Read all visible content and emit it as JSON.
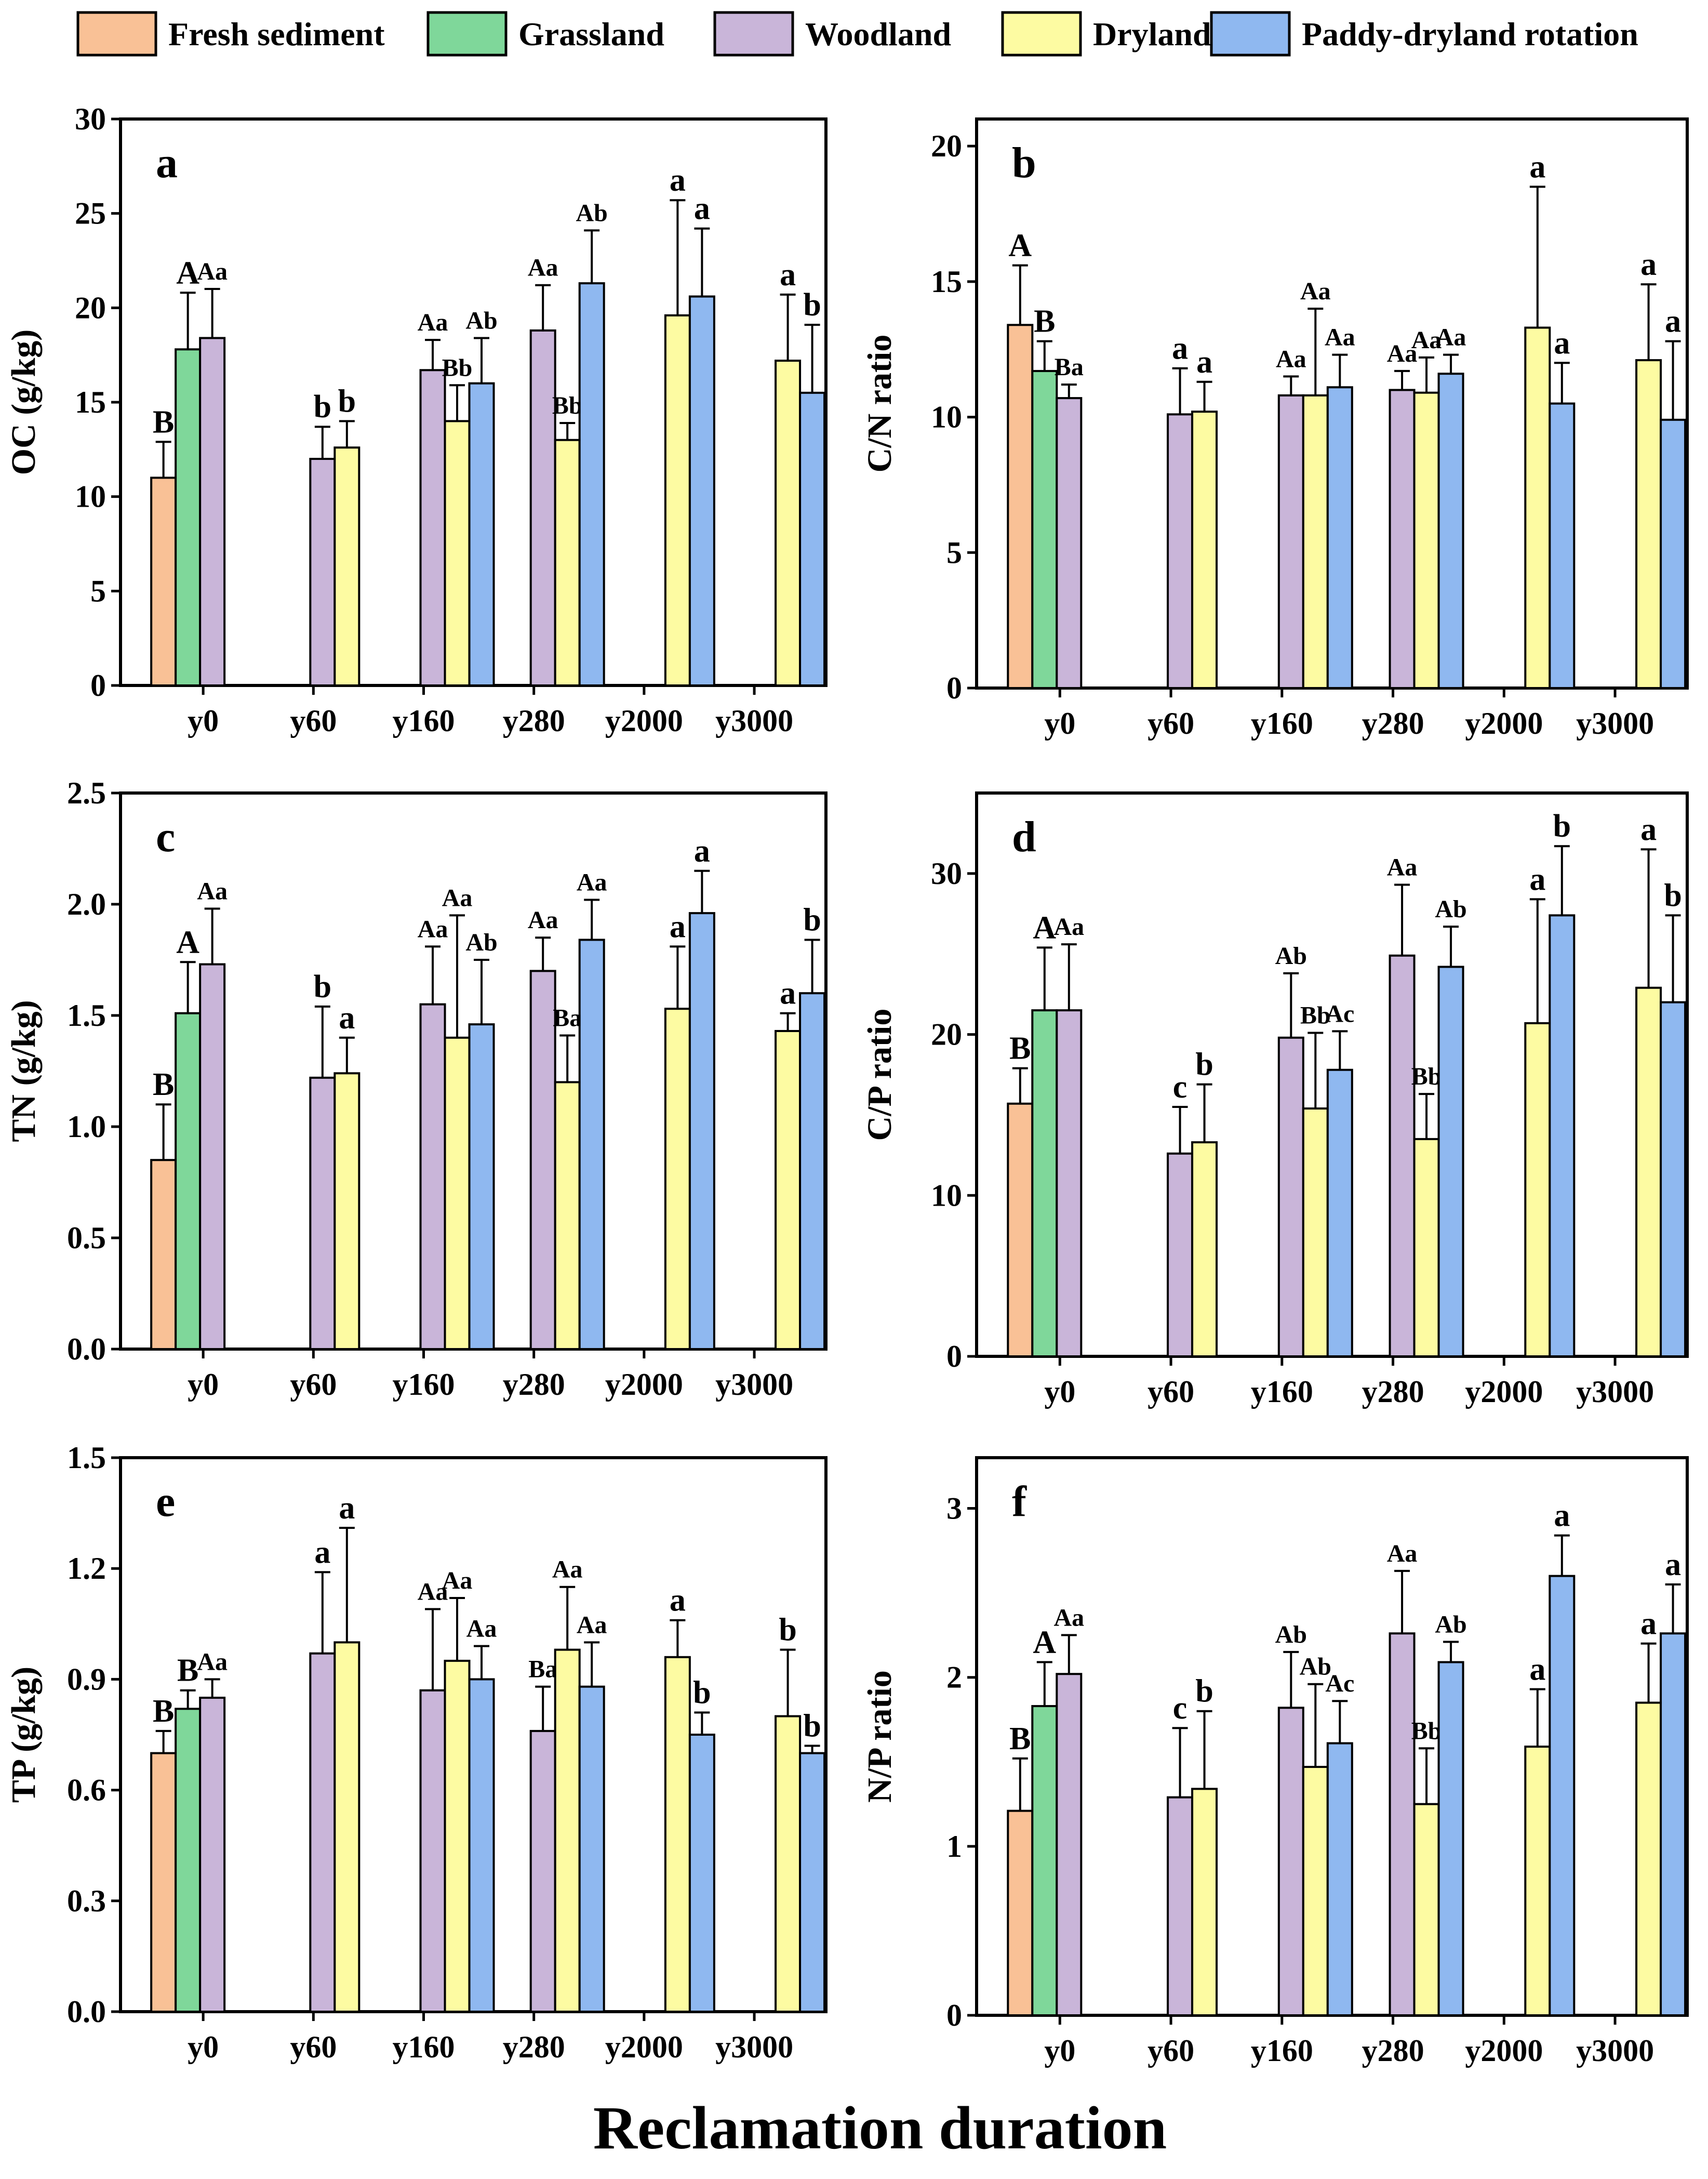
{
  "legend": [
    {
      "name": "Fresh sediment",
      "color": "#F9C196"
    },
    {
      "name": "Grassland",
      "color": "#7FD79A"
    },
    {
      "name": "Woodland",
      "color": "#C9B5D9"
    },
    {
      "name": "Dryland",
      "color": "#FDFBA2"
    },
    {
      "name": "Paddy-dryland rotation",
      "color": "#8FB8F0"
    }
  ],
  "xlabel": "Reclamation duration",
  "chart_data": [
    {
      "id": "a",
      "type": "bar",
      "panel_label": "a",
      "ylabel": "OC (g/kg)",
      "ylim": [
        0,
        30
      ],
      "yticks": [
        "0",
        "5",
        "10",
        "15",
        "20",
        "25",
        "30"
      ],
      "ytick_values": [
        0,
        5,
        10,
        15,
        20,
        25,
        30
      ],
      "categories": [
        "y0",
        "y60",
        "y160",
        "y280",
        "y2000",
        "y3000"
      ],
      "series": [
        {
          "name": "Fresh sediment",
          "values": [
            11.0,
            null,
            null,
            null,
            null,
            null
          ],
          "errors": [
            1.9,
            null,
            null,
            null,
            null,
            null
          ],
          "labels": [
            "B",
            "",
            "",
            "",
            "",
            ""
          ]
        },
        {
          "name": "Grassland",
          "values": [
            17.8,
            null,
            null,
            null,
            null,
            null
          ],
          "errors": [
            3.0,
            null,
            null,
            null,
            null,
            null
          ],
          "labels": [
            "A",
            "",
            "",
            "",
            "",
            ""
          ]
        },
        {
          "name": "Woodland",
          "values": [
            18.4,
            12.0,
            16.7,
            18.8,
            null,
            null
          ],
          "errors": [
            2.6,
            1.7,
            1.6,
            2.4,
            null,
            null
          ],
          "labels": [
            "Aa",
            "b",
            "Aa",
            "Aa",
            "",
            ""
          ]
        },
        {
          "name": "Dryland",
          "values": [
            null,
            12.6,
            14.0,
            13.0,
            19.6,
            17.2
          ],
          "errors": [
            null,
            1.4,
            1.9,
            0.9,
            6.1,
            3.5
          ],
          "labels": [
            "",
            "b",
            "Bb",
            "Bb",
            "a",
            "a"
          ]
        },
        {
          "name": "Paddy-dryland rotation",
          "values": [
            null,
            null,
            16.0,
            21.3,
            20.6,
            15.5
          ],
          "errors": [
            null,
            null,
            2.4,
            2.8,
            3.6,
            3.6
          ],
          "labels": [
            "",
            "",
            "Ab",
            "Ab",
            "a",
            "b"
          ]
        }
      ]
    },
    {
      "id": "b",
      "type": "bar",
      "panel_label": "b",
      "ylabel": "C/N ratio",
      "ylim": [
        0,
        21
      ],
      "yticks": [
        "0",
        "5",
        "10",
        "15",
        "20"
      ],
      "ytick_values": [
        0,
        5,
        10,
        15,
        20
      ],
      "categories": [
        "y0",
        "y60",
        "y160",
        "y280",
        "y2000",
        "y3000"
      ],
      "series": [
        {
          "name": "Fresh sediment",
          "values": [
            13.4,
            null,
            null,
            null,
            null,
            null
          ],
          "errors": [
            2.2,
            null,
            null,
            null,
            null,
            null
          ],
          "labels": [
            "A",
            "",
            "",
            "",
            "",
            ""
          ]
        },
        {
          "name": "Grassland",
          "values": [
            11.7,
            null,
            null,
            null,
            null,
            null
          ],
          "errors": [
            1.1,
            null,
            null,
            null,
            null,
            null
          ],
          "labels": [
            "B",
            "",
            "",
            "",
            "",
            ""
          ]
        },
        {
          "name": "Woodland",
          "values": [
            10.7,
            10.1,
            10.8,
            11.0,
            null,
            null
          ],
          "errors": [
            0.5,
            1.7,
            0.7,
            0.7,
            null,
            null
          ],
          "labels": [
            "Ba",
            "a",
            "Aa",
            "Aa",
            "",
            ""
          ]
        },
        {
          "name": "Dryland",
          "values": [
            null,
            10.2,
            10.8,
            10.9,
            13.3,
            12.1
          ],
          "errors": [
            null,
            1.1,
            3.2,
            1.3,
            5.2,
            2.8
          ],
          "labels": [
            "",
            "a",
            "Aa",
            "Aa",
            "a",
            "a"
          ]
        },
        {
          "name": "Paddy-dryland rotation",
          "values": [
            null,
            null,
            11.1,
            11.6,
            10.5,
            9.9
          ],
          "errors": [
            null,
            null,
            1.2,
            0.7,
            1.5,
            2.9
          ],
          "labels": [
            "",
            "",
            "Aa",
            "Aa",
            "a",
            "a"
          ]
        }
      ]
    },
    {
      "id": "c",
      "type": "bar",
      "panel_label": "c",
      "ylabel": "TN (g/kg)",
      "ylim": [
        0,
        2.5
      ],
      "yticks": [
        "0.0",
        "0.5",
        "1.0",
        "1.5",
        "2.0",
        "2.5"
      ],
      "ytick_values": [
        0,
        0.5,
        1.0,
        1.5,
        2.0,
        2.5
      ],
      "categories": [
        "y0",
        "y60",
        "y160",
        "y280",
        "y2000",
        "y3000"
      ],
      "series": [
        {
          "name": "Fresh sediment",
          "values": [
            0.85,
            null,
            null,
            null,
            null,
            null
          ],
          "errors": [
            0.25,
            null,
            null,
            null,
            null,
            null
          ],
          "labels": [
            "B",
            "",
            "",
            "",
            "",
            ""
          ]
        },
        {
          "name": "Grassland",
          "values": [
            1.51,
            null,
            null,
            null,
            null,
            null
          ],
          "errors": [
            0.23,
            null,
            null,
            null,
            null,
            null
          ],
          "labels": [
            "A",
            "",
            "",
            "",
            "",
            ""
          ]
        },
        {
          "name": "Woodland",
          "values": [
            1.73,
            1.22,
            1.55,
            1.7,
            null,
            null
          ],
          "errors": [
            0.25,
            0.32,
            0.26,
            0.15,
            null,
            null
          ],
          "labels": [
            "Aa",
            "b",
            "Aa",
            "Aa",
            "",
            ""
          ]
        },
        {
          "name": "Dryland",
          "values": [
            null,
            1.24,
            1.4,
            1.2,
            1.53,
            1.43
          ],
          "errors": [
            null,
            0.16,
            0.55,
            0.21,
            0.28,
            0.08
          ],
          "labels": [
            "",
            "a",
            "Aa",
            "Ba",
            "a",
            "a"
          ]
        },
        {
          "name": "Paddy-dryland rotation",
          "values": [
            null,
            null,
            1.46,
            1.84,
            1.96,
            1.6
          ],
          "errors": [
            null,
            null,
            0.29,
            0.18,
            0.19,
            0.24
          ],
          "labels": [
            "",
            "",
            "Ab",
            "Aa",
            "a",
            "b"
          ]
        }
      ]
    },
    {
      "id": "d",
      "type": "bar",
      "panel_label": "d",
      "ylabel": "C/P ratio",
      "ylim": [
        0,
        35
      ],
      "yticks": [
        "0",
        "10",
        "20",
        "30"
      ],
      "ytick_values": [
        0,
        10,
        20,
        30
      ],
      "categories": [
        "y0",
        "y60",
        "y160",
        "y280",
        "y2000",
        "y3000"
      ],
      "series": [
        {
          "name": "Fresh sediment",
          "values": [
            15.7,
            null,
            null,
            null,
            null,
            null
          ],
          "errors": [
            2.2,
            null,
            null,
            null,
            null,
            null
          ],
          "labels": [
            "B",
            "",
            "",
            "",
            "",
            ""
          ]
        },
        {
          "name": "Grassland",
          "values": [
            21.5,
            null,
            null,
            null,
            null,
            null
          ],
          "errors": [
            3.9,
            null,
            null,
            null,
            null,
            null
          ],
          "labels": [
            "A",
            "",
            "",
            "",
            "",
            ""
          ]
        },
        {
          "name": "Woodland",
          "values": [
            21.5,
            12.6,
            19.8,
            24.9,
            null,
            null
          ],
          "errors": [
            4.1,
            2.9,
            4.0,
            4.4,
            null,
            null
          ],
          "labels": [
            "Aa",
            "c",
            "Ab",
            "Aa",
            "",
            ""
          ]
        },
        {
          "name": "Dryland",
          "values": [
            null,
            13.3,
            15.4,
            13.5,
            20.7,
            22.9
          ],
          "errors": [
            null,
            3.6,
            4.7,
            2.8,
            7.7,
            8.6
          ],
          "labels": [
            "",
            "b",
            "Bb",
            "Bb",
            "a",
            "a"
          ]
        },
        {
          "name": "Paddy-dryland rotation",
          "values": [
            null,
            null,
            17.8,
            24.2,
            27.4,
            22.0
          ],
          "errors": [
            null,
            null,
            2.4,
            2.5,
            4.3,
            5.4
          ],
          "labels": [
            "",
            "",
            "Ac",
            "Ab",
            "b",
            "b"
          ]
        }
      ]
    },
    {
      "id": "e",
      "type": "bar",
      "panel_label": "e",
      "ylabel": "TP (g/kg)",
      "ylim": [
        0,
        1.5
      ],
      "yticks": [
        "0.0",
        "0.3",
        "0.6",
        "0.9",
        "1.2",
        "1.5"
      ],
      "ytick_values": [
        0,
        0.3,
        0.6,
        0.9,
        1.2,
        1.5
      ],
      "categories": [
        "y0",
        "y60",
        "y160",
        "y280",
        "y2000",
        "y3000"
      ],
      "series": [
        {
          "name": "Fresh sediment",
          "values": [
            0.7,
            null,
            null,
            null,
            null,
            null
          ],
          "errors": [
            0.06,
            null,
            null,
            null,
            null,
            null
          ],
          "labels": [
            "B",
            "",
            "",
            "",
            "",
            ""
          ]
        },
        {
          "name": "Grassland",
          "values": [
            0.82,
            null,
            null,
            null,
            null,
            null
          ],
          "errors": [
            0.05,
            null,
            null,
            null,
            null,
            null
          ],
          "labels": [
            "B",
            "",
            "",
            "",
            "",
            ""
          ]
        },
        {
          "name": "Woodland",
          "values": [
            0.85,
            0.97,
            0.87,
            0.76,
            null,
            null
          ],
          "errors": [
            0.05,
            0.22,
            0.22,
            0.12,
            null,
            null
          ],
          "labels": [
            "Aa",
            "a",
            "Aa",
            "Ba",
            "",
            ""
          ]
        },
        {
          "name": "Dryland",
          "values": [
            null,
            1.0,
            0.95,
            0.98,
            0.96,
            0.8
          ],
          "errors": [
            null,
            0.31,
            0.17,
            0.17,
            0.1,
            0.18
          ],
          "labels": [
            "",
            "a",
            "Aa",
            "Aa",
            "a",
            "b"
          ]
        },
        {
          "name": "Paddy-dryland rotation",
          "values": [
            null,
            null,
            0.9,
            0.88,
            0.75,
            0.7
          ],
          "errors": [
            null,
            null,
            0.09,
            0.12,
            0.06,
            0.02
          ],
          "labels": [
            "",
            "",
            "Aa",
            "Aa",
            "b",
            "b"
          ]
        }
      ]
    },
    {
      "id": "f",
      "type": "bar",
      "panel_label": "f",
      "ylabel": "N/P ratio",
      "ylim": [
        0,
        3.3
      ],
      "yticks": [
        "0",
        "1",
        "2",
        "3"
      ],
      "ytick_values": [
        0,
        1,
        2,
        3
      ],
      "categories": [
        "y0",
        "y60",
        "y160",
        "y280",
        "y2000",
        "y3000"
      ],
      "series": [
        {
          "name": "Fresh sediment",
          "values": [
            1.21,
            null,
            null,
            null,
            null,
            null
          ],
          "errors": [
            0.31,
            null,
            null,
            null,
            null,
            null
          ],
          "labels": [
            "B",
            "",
            "",
            "",
            "",
            ""
          ]
        },
        {
          "name": "Grassland",
          "values": [
            1.83,
            null,
            null,
            null,
            null,
            null
          ],
          "errors": [
            0.26,
            null,
            null,
            null,
            null,
            null
          ],
          "labels": [
            "A",
            "",
            "",
            "",
            "",
            ""
          ]
        },
        {
          "name": "Woodland",
          "values": [
            2.02,
            1.29,
            1.82,
            2.26,
            null,
            null
          ],
          "errors": [
            0.23,
            0.41,
            0.33,
            0.37,
            null,
            null
          ],
          "labels": [
            "Aa",
            "c",
            "Ab",
            "Aa",
            "",
            ""
          ]
        },
        {
          "name": "Dryland",
          "values": [
            null,
            1.34,
            1.47,
            1.25,
            1.59,
            1.85
          ],
          "errors": [
            null,
            0.46,
            0.49,
            0.33,
            0.34,
            0.35
          ],
          "labels": [
            "",
            "b",
            "Ab",
            "Bb",
            "a",
            "a"
          ]
        },
        {
          "name": "Paddy-dryland rotation",
          "values": [
            null,
            null,
            1.61,
            2.09,
            2.6,
            2.26
          ],
          "errors": [
            null,
            null,
            0.25,
            0.12,
            0.24,
            0.29
          ],
          "labels": [
            "",
            "",
            "Ac",
            "Ab",
            "a",
            "a"
          ]
        }
      ]
    }
  ]
}
